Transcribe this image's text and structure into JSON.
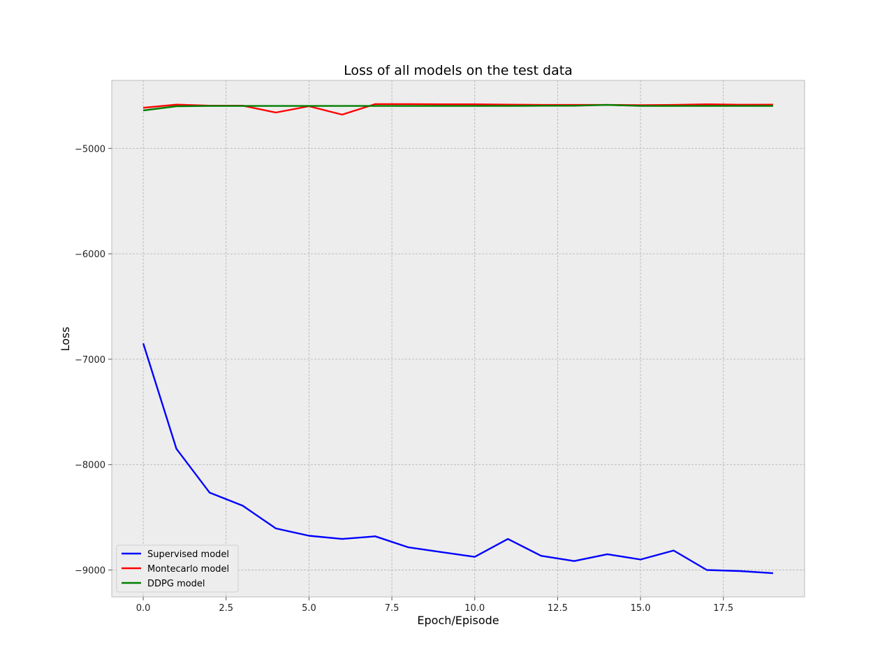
{
  "chart_data": {
    "type": "line",
    "title": "Loss of all models on the test data",
    "xlabel": "Epoch/Episode",
    "ylabel": "Loss",
    "xlim": [
      -0.95,
      19.95
    ],
    "ylim": [
      -9255,
      -4355
    ],
    "xticks": [
      0.0,
      2.5,
      5.0,
      7.5,
      10.0,
      12.5,
      15.0,
      17.5
    ],
    "xtick_labels": [
      "0.0",
      "2.5",
      "5.0",
      "7.5",
      "10.0",
      "12.5",
      "15.0",
      "17.5"
    ],
    "yticks": [
      -5000,
      -6000,
      -7000,
      -8000,
      -9000
    ],
    "ytick_labels": [
      "−5000",
      "−6000",
      "−7000",
      "−8000",
      "−9000"
    ],
    "grid": true,
    "legend_position": "lower-left",
    "x": [
      0,
      1,
      2,
      3,
      4,
      5,
      6,
      7,
      8,
      9,
      10,
      11,
      12,
      13,
      14,
      15,
      16,
      17,
      18,
      19
    ],
    "series": [
      {
        "name": "Supervised model",
        "color": "#0000ff",
        "values": [
          -6850,
          -7850,
          -8265,
          -8390,
          -8605,
          -8675,
          -8705,
          -8680,
          -8785,
          -8830,
          -8875,
          -8705,
          -8865,
          -8915,
          -8850,
          -8900,
          -8815,
          -9000,
          -9010,
          -9030
        ]
      },
      {
        "name": "Montecarlo model",
        "color": "#ff0000",
        "values": [
          -4615,
          -4585,
          -4595,
          -4595,
          -4660,
          -4600,
          -4680,
          -4580,
          -4580,
          -4582,
          -4582,
          -4585,
          -4588,
          -4588,
          -4588,
          -4590,
          -4588,
          -4582,
          -4586,
          -4585
        ]
      },
      {
        "name": "DDPG model",
        "color": "#008000",
        "values": [
          -4640,
          -4600,
          -4598,
          -4598,
          -4598,
          -4598,
          -4598,
          -4598,
          -4598,
          -4598,
          -4598,
          -4598,
          -4596,
          -4596,
          -4588,
          -4598,
          -4598,
          -4598,
          -4598,
          -4598
        ]
      }
    ],
    "colors": {
      "plot_background": "#ededed",
      "frame": "#bcbcbc",
      "grid": "#b0b0b0"
    }
  }
}
